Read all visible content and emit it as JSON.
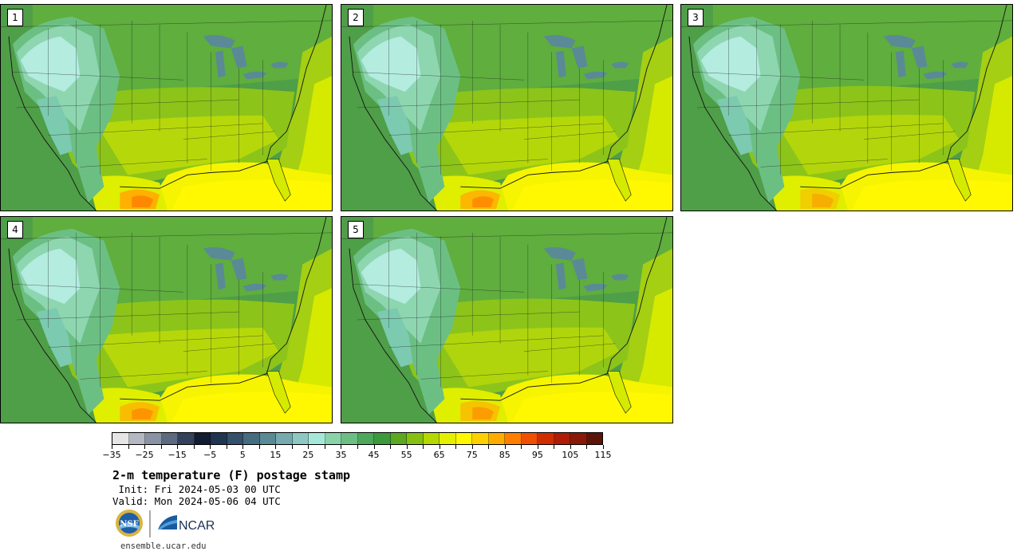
{
  "stamps": [
    {
      "label": "1"
    },
    {
      "label": "2"
    },
    {
      "label": "3"
    },
    {
      "label": "4"
    },
    {
      "label": "5"
    }
  ],
  "colorbar": {
    "colors": [
      "#e6e6e6",
      "#b4b8c0",
      "#8a93a3",
      "#5d6a80",
      "#34415b",
      "#111c33",
      "#1f3550",
      "#34506a",
      "#466c80",
      "#5a8a95",
      "#76aaaf",
      "#8ec8c3",
      "#a6e8d8",
      "#88d4a8",
      "#6cbf83",
      "#4da85c",
      "#3c9a3c",
      "#5ca820",
      "#86c010",
      "#b4d800",
      "#e4f000",
      "#fff800",
      "#ffd000",
      "#ffac00",
      "#ff7e00",
      "#f05000",
      "#d02e00",
      "#b01c06",
      "#8a1808",
      "#5c1408"
    ],
    "tick_labels": [
      "−35",
      "−25",
      "−15",
      "−5",
      "5",
      "15",
      "25",
      "35",
      "45",
      "55",
      "65",
      "75",
      "85",
      "95",
      "105",
      "115"
    ]
  },
  "title": "2-m temperature (F) postage stamp",
  "init_line": " Init: Fri 2024-05-03 00 UTC",
  "valid_line": "Valid: Mon 2024-05-06 04 UTC",
  "logos": {
    "nsf": "NSF",
    "ncar": "NCAR"
  },
  "url": "ensemble.ucar.edu"
}
